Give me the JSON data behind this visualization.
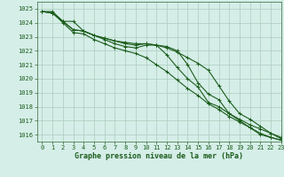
{
  "title": "Graphe pression niveau de la mer (hPa)",
  "bg_color": "#d5eee8",
  "grid_color": "#aaccbb",
  "line_color": "#1a5c1a",
  "xlim": [
    -0.5,
    23
  ],
  "ylim": [
    1015.5,
    1025.5
  ],
  "yticks": [
    1016,
    1017,
    1018,
    1019,
    1020,
    1021,
    1022,
    1023,
    1024,
    1025
  ],
  "xticks": [
    0,
    1,
    2,
    3,
    4,
    5,
    6,
    7,
    8,
    9,
    10,
    11,
    12,
    13,
    14,
    15,
    16,
    17,
    18,
    19,
    20,
    21,
    22,
    23
  ],
  "series": [
    [
      1024.8,
      1024.8,
      1024.1,
      1024.1,
      1023.4,
      1023.1,
      1022.8,
      1022.5,
      1022.3,
      1022.2,
      1022.4,
      1022.4,
      1021.7,
      1020.8,
      1020.0,
      1019.4,
      1018.3,
      1018.0,
      1017.5,
      1017.0,
      1016.5,
      1016.0,
      1015.8,
      1015.6
    ],
    [
      1024.8,
      1024.7,
      1024.0,
      1023.3,
      1023.2,
      1022.8,
      1022.5,
      1022.2,
      1022.0,
      1021.8,
      1021.5,
      1021.0,
      1020.5,
      1019.9,
      1019.3,
      1018.8,
      1018.2,
      1017.8,
      1017.3,
      1016.9,
      1016.5,
      1016.1,
      1015.8,
      1015.6
    ],
    [
      1024.8,
      1024.7,
      1024.1,
      1023.5,
      1023.4,
      1023.1,
      1022.9,
      1022.7,
      1022.6,
      1022.5,
      1022.5,
      1022.4,
      1022.3,
      1022.0,
      1021.0,
      1019.7,
      1018.9,
      1018.5,
      1017.5,
      1017.1,
      1016.7,
      1016.4,
      1016.1,
      1015.8
    ],
    [
      1024.8,
      1024.7,
      1024.1,
      1023.5,
      1023.4,
      1023.1,
      1022.9,
      1022.7,
      1022.5,
      1022.4,
      1022.5,
      1022.4,
      1022.2,
      1021.9,
      1021.5,
      1021.1,
      1020.6,
      1019.5,
      1018.4,
      1017.5,
      1017.1,
      1016.6,
      1016.1,
      1015.7
    ]
  ],
  "marker": "+",
  "linewidth": 0.8,
  "markersize": 3,
  "title_fontsize": 6,
  "tick_fontsize": 5
}
